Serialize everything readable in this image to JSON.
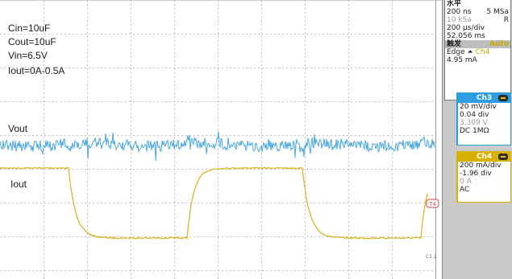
{
  "annotations": {
    "cin": "Cin=10uF",
    "cout": "Cout=10uF",
    "vin": "Vin=6.5V",
    "iout_range": "Iout=0A-0.5A",
    "vout_label": "Vout",
    "iout_label": "Iout"
  },
  "markers": {
    "t4": "T4",
    "c1_2": "C1 2"
  },
  "horizontal": {
    "title": "水平",
    "time_per_div_short": "200 ns",
    "sample_rate": "5 MSa",
    "sample_rate_dim": "10 kSa",
    "run_flag": "R",
    "time_per_div": "200 µs/div",
    "position": "52.056 ms"
  },
  "trigger": {
    "title": "触发",
    "mode": "Auto",
    "edge_label": "Edge",
    "edge_symbol": "⏶",
    "source": "Ch4",
    "level": "4.95 mA"
  },
  "ch3": {
    "name": "Ch3",
    "scale": "20 mV/div",
    "offset_div": "0.04 div",
    "offset_value": "3.309 V",
    "coupling": "DC 1MΩ"
  },
  "ch4": {
    "name": "Ch4",
    "scale": "200 mA/div",
    "offset_div": "-1.96 div",
    "offset_value": "0 A",
    "coupling": "AC"
  },
  "colors": {
    "vout_trace": "#4aa8e0",
    "iout_trace": "#d9b21a",
    "grid": "#bfbfbf"
  }
}
